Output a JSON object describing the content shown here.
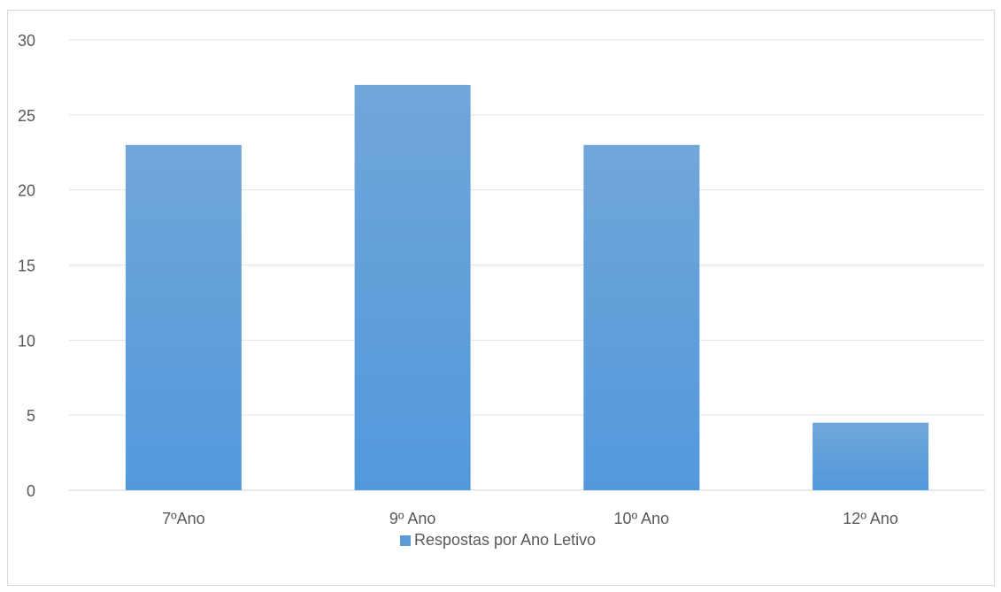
{
  "chart_data": {
    "type": "bar",
    "title": "",
    "xlabel": "",
    "ylabel": "",
    "categories": [
      "7ºAno",
      "9º Ano",
      "10º Ano",
      "12º Ano"
    ],
    "series": [
      {
        "name": "Respostas por Ano Letivo",
        "values": [
          23,
          27,
          23,
          4.5
        ],
        "color": "#5b9bd5"
      }
    ],
    "ylim": [
      0,
      30
    ],
    "yticks": [
      "0",
      "5",
      "10",
      "15",
      "20",
      "25",
      "30"
    ],
    "grid": true,
    "legend_position": "bottom"
  }
}
